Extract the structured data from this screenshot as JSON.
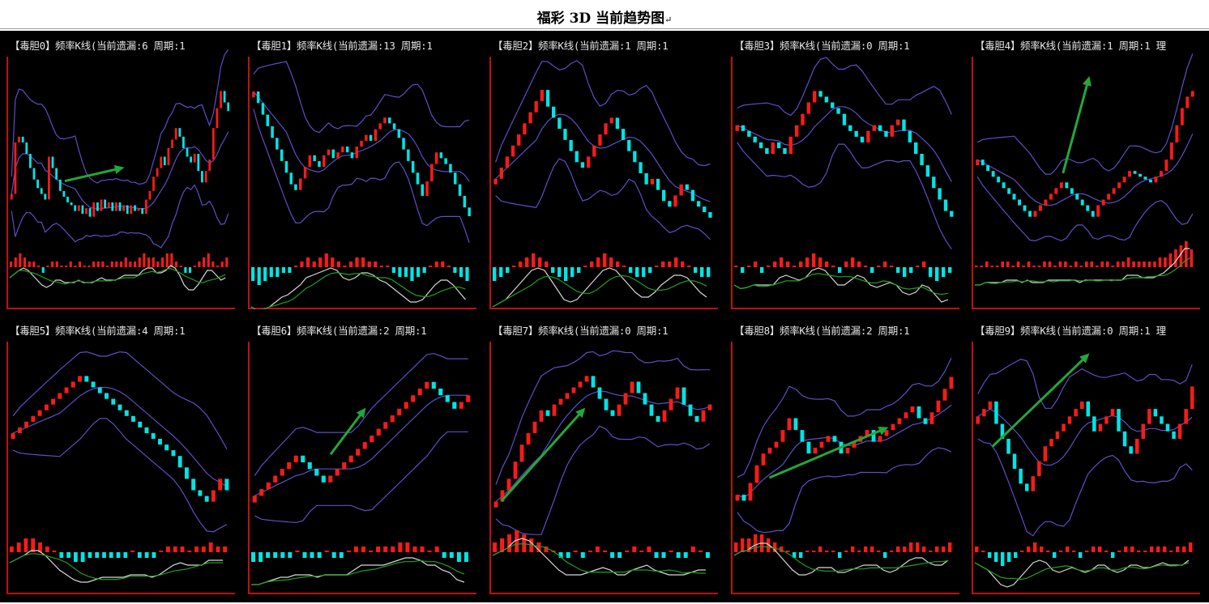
{
  "title": "福彩 3D 当前趋势图",
  "title_mark": "↵",
  "colors": {
    "background": "#000000",
    "up_candle": "#ff1a1a",
    "down_candle": "#00e5e5",
    "band_line": "#5b4fc8",
    "trend_arrow": "#22a83a",
    "axis": "#c01010",
    "macd_fast": "#d8d8d8",
    "macd_slow": "#1fa01f"
  },
  "chart_data": [
    {
      "label": "【毒胆0】频率K线(当前遗漏:6 周期:1",
      "type": "candlestick",
      "values": [
        22,
        40,
        42,
        40,
        36,
        31,
        27,
        24,
        22,
        20,
        35,
        31,
        27,
        23,
        21,
        19,
        18,
        16,
        18,
        15,
        17,
        14,
        19,
        16,
        20,
        17,
        19,
        16,
        19,
        16,
        18,
        15,
        18,
        16,
        17,
        15,
        20,
        23,
        28,
        31,
        35,
        32,
        38,
        41,
        45,
        42,
        38,
        35,
        33,
        36,
        30,
        26,
        30,
        34,
        45,
        52,
        58,
        54,
        51
      ],
      "trend": [
        25,
        36,
        52,
        43
      ],
      "macd_values": [
        1,
        2,
        3,
        2,
        1,
        1,
        0,
        -1,
        0,
        1,
        1,
        0,
        0,
        1,
        0,
        1,
        0,
        0,
        1,
        1,
        1,
        0,
        1,
        1,
        1,
        2,
        1,
        1,
        2,
        3,
        2,
        2,
        1,
        2,
        3,
        3,
        1,
        0,
        -1,
        -1,
        0,
        1,
        2,
        3,
        1,
        0,
        1,
        2
      ]
    },
    {
      "label": "【毒胆1】频率K线(当前遗漏:13 周期:1",
      "type": "candlestick",
      "values": [
        53,
        49,
        45,
        41,
        37,
        33,
        29,
        25,
        21,
        19,
        23,
        27,
        31,
        29,
        27,
        31,
        33,
        30,
        32,
        34,
        32,
        30,
        34,
        36,
        38,
        36,
        40,
        42,
        44,
        42,
        40,
        37,
        33,
        29,
        25,
        21,
        17,
        22,
        28,
        32,
        30,
        28,
        25,
        21,
        17,
        13,
        10
      ],
      "trend": [],
      "macd_values": [
        -3,
        -4,
        -3,
        -2,
        -2,
        -1,
        -1,
        0,
        1,
        2,
        1,
        2,
        3,
        2,
        1,
        0,
        1,
        2,
        2,
        1,
        1,
        0,
        0,
        -1,
        -2,
        -2,
        -3,
        -2,
        -1,
        0,
        1,
        1,
        0,
        -1,
        -2,
        -3
      ]
    },
    {
      "label": "【毒胆2】频率K线(当前遗漏:1 周期:1",
      "type": "candlestick",
      "values": [
        30,
        34,
        38,
        42,
        46,
        50,
        54,
        58,
        62,
        56,
        52,
        48,
        44,
        40,
        36,
        34,
        38,
        42,
        46,
        50,
        52,
        48,
        44,
        40,
        36,
        32,
        28,
        30,
        26,
        22,
        20,
        24,
        28,
        26,
        22,
        20,
        18,
        16
      ],
      "trend": [],
      "macd_values": [
        -3,
        -2,
        -1,
        0,
        1,
        2,
        3,
        2,
        1,
        -1,
        -2,
        -3,
        -2,
        -1,
        0,
        1,
        2,
        3,
        2,
        1,
        0,
        -1,
        -2,
        -2,
        -1,
        0,
        1,
        1,
        2,
        1,
        0,
        -1,
        -2,
        -2
      ]
    },
    {
      "label": "【毒胆3】频率K线(当前遗漏:0 周期:1",
      "type": "candlestick",
      "values": [
        48,
        46,
        44,
        42,
        40,
        38,
        42,
        40,
        38,
        44,
        48,
        52,
        56,
        60,
        58,
        56,
        54,
        52,
        48,
        46,
        44,
        42,
        46,
        48,
        46,
        44,
        48,
        50,
        46,
        42,
        38,
        34,
        30,
        26,
        22,
        18,
        16
      ],
      "trend": [],
      "macd_values": [
        0,
        -1,
        0,
        1,
        -1,
        0,
        1,
        2,
        1,
        0,
        1,
        2,
        3,
        2,
        1,
        0,
        -1,
        1,
        2,
        1,
        0,
        -1,
        0,
        1,
        0,
        -1,
        -2,
        -1,
        0,
        1,
        -2,
        -3,
        -2,
        -1
      ]
    },
    {
      "label": "【毒胆4】频率K线(当前遗漏:1 周期:1 理",
      "type": "candlestick",
      "values": [
        40,
        38,
        36,
        34,
        32,
        30,
        28,
        26,
        24,
        22,
        20,
        22,
        24,
        26,
        28,
        30,
        32,
        30,
        28,
        26,
        24,
        22,
        20,
        24,
        26,
        28,
        30,
        32,
        34,
        36,
        35,
        34,
        33,
        32,
        34,
        36,
        40,
        46,
        52,
        58,
        62,
        64
      ],
      "trend": [
        40,
        40,
        52,
        90
      ],
      "macd_values": [
        0,
        0,
        1,
        0,
        0,
        1,
        1,
        0,
        1,
        0,
        1,
        0,
        0,
        1,
        1,
        0,
        1,
        1,
        0,
        1,
        0,
        1,
        1,
        0,
        1,
        1,
        0,
        1,
        1,
        2,
        1,
        1,
        1,
        1,
        1,
        2,
        2,
        3,
        4,
        5,
        6,
        4
      ]
    },
    {
      "label": "【毒胆5】频率K线(当前遗漏:4 周期:1",
      "type": "candlestick",
      "values": [
        42,
        44,
        46,
        48,
        50,
        52,
        54,
        56,
        58,
        60,
        62,
        60,
        58,
        56,
        54,
        52,
        50,
        48,
        46,
        44,
        42,
        40,
        38,
        36,
        34,
        30,
        26,
        22,
        20,
        18,
        22,
        26,
        22
      ],
      "trend": [],
      "macd_values": [
        1,
        2,
        3,
        3,
        2,
        1,
        0,
        -1,
        -1,
        -2,
        -2,
        -1,
        -1,
        -1,
        -1,
        -1,
        -1,
        0,
        -1,
        -1,
        -1,
        0,
        1,
        1,
        1,
        0,
        1,
        1,
        2,
        1,
        1
      ]
    },
    {
      "label": "【毒胆6】频率K线(当前遗漏:2 周期:1",
      "type": "candlestick",
      "values": [
        26,
        28,
        30,
        32,
        34,
        36,
        38,
        36,
        34,
        32,
        30,
        32,
        34,
        36,
        38,
        40,
        42,
        44,
        46,
        48,
        50,
        52,
        54,
        56,
        58,
        60,
        58,
        56,
        54,
        52,
        54,
        56
      ],
      "trend": [
        36,
        42,
        52,
        66
      ],
      "macd_values": [
        -2,
        -2,
        -1,
        -1,
        -1,
        -1,
        0,
        -1,
        -1,
        -1,
        0,
        -1,
        -1,
        0,
        1,
        1,
        0,
        1,
        1,
        1,
        2,
        2,
        1,
        1,
        0,
        1,
        -1,
        -1,
        -2,
        -2
      ]
    },
    {
      "label": "【毒胆7】频率K线(当前遗漏:0 周期:1",
      "type": "candlestick",
      "values": [
        16,
        20,
        24,
        30,
        36,
        40,
        44,
        48,
        46,
        50,
        52,
        54,
        56,
        58,
        60,
        56,
        52,
        48,
        46,
        50,
        54,
        58,
        54,
        50,
        46,
        44,
        48,
        52,
        56,
        50,
        46,
        44,
        48,
        50
      ],
      "trend": [
        4,
        18,
        42,
        66
      ],
      "macd_values": [
        2,
        3,
        4,
        5,
        4,
        3,
        2,
        1,
        0,
        -1,
        -1,
        0,
        -1,
        0,
        1,
        0,
        -1,
        -1,
        0,
        1,
        0,
        1,
        -1,
        -1,
        0,
        -1,
        -1,
        1,
        0,
        -1
      ]
    },
    {
      "label": "【毒胆8】频率K线(当前遗漏:2 周期:1",
      "type": "candlestick",
      "values": [
        22,
        20,
        26,
        32,
        36,
        38,
        40,
        44,
        48,
        44,
        40,
        36,
        38,
        40,
        42,
        40,
        36,
        38,
        40,
        42,
        44,
        40,
        42,
        44,
        46,
        48,
        50,
        52,
        48,
        46,
        50,
        54,
        58,
        62
      ],
      "trend": [
        16,
        30,
        70,
        56
      ],
      "macd_values": [
        2,
        3,
        3,
        4,
        4,
        3,
        2,
        1,
        0,
        -1,
        -1,
        0,
        0,
        1,
        0,
        0,
        -1,
        0,
        1,
        0,
        1,
        1,
        0,
        -1,
        0,
        1,
        1,
        2,
        2,
        1,
        0,
        1,
        1,
        2
      ]
    },
    {
      "label": "【毒胆9】频率K线(当前遗漏:0 周期:1 理",
      "type": "candlestick",
      "values": [
        40,
        42,
        44,
        38,
        34,
        30,
        26,
        22,
        20,
        24,
        28,
        32,
        34,
        36,
        38,
        40,
        42,
        44,
        40,
        36,
        38,
        40,
        42,
        36,
        32,
        30,
        34,
        38,
        42,
        40,
        38,
        36,
        34,
        38,
        42,
        48
      ],
      "trend": [
        8,
        46,
        52,
        94
      ],
      "macd_values": [
        1,
        0,
        -1,
        -2,
        -3,
        -2,
        -1,
        0,
        1,
        2,
        1,
        0,
        -1,
        0,
        1,
        0,
        -1,
        0,
        1,
        1,
        0,
        -1,
        0,
        1,
        1,
        0,
        0,
        1,
        1,
        1,
        0,
        1,
        1,
        2
      ]
    }
  ]
}
